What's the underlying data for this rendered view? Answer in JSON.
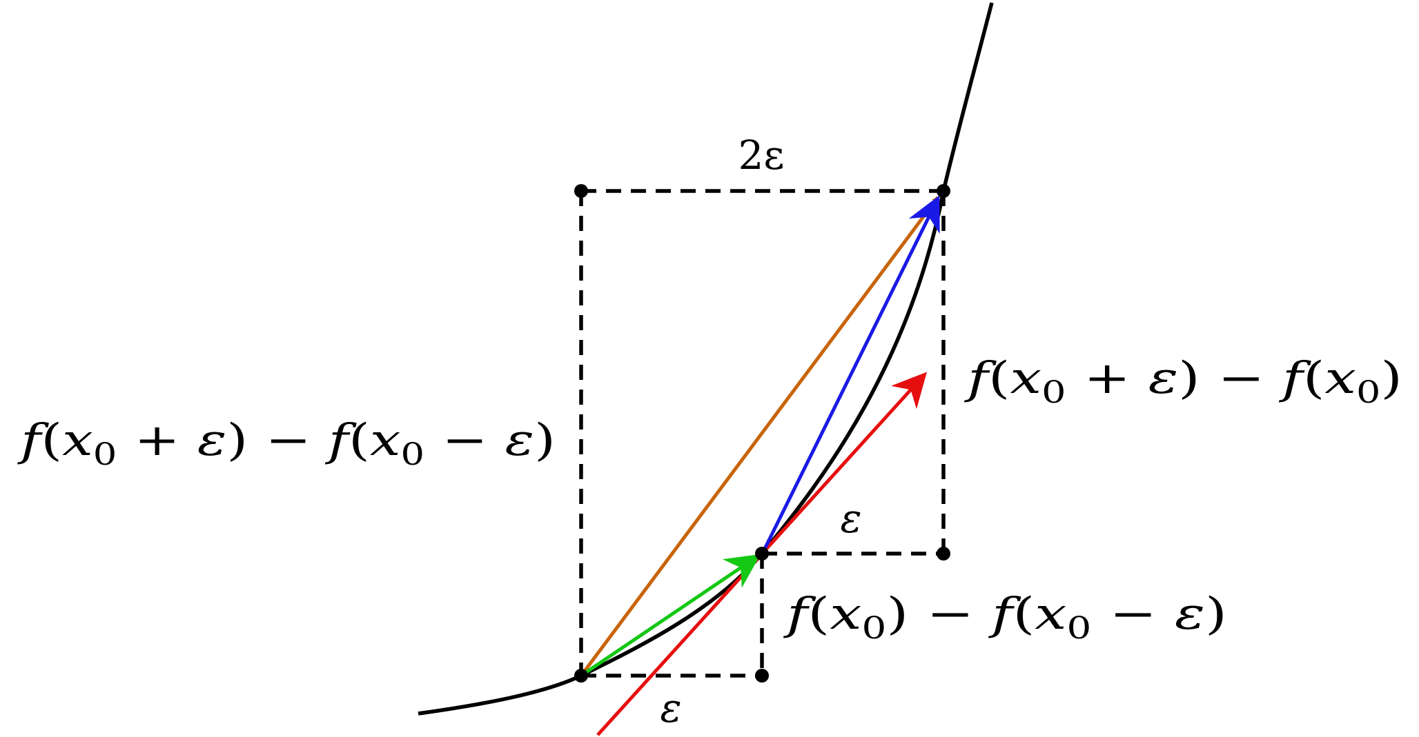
{
  "labels": {
    "two_eps": "2ε",
    "eps_right": "ε",
    "eps_bottom": "ε",
    "central_diff": {
      "f1": "f",
      "lp1": "(",
      "x1": "x",
      "s1": "0",
      "plus": " + ",
      "e1": "ε",
      "rp1": ")",
      "minus": " − ",
      "f2": "f",
      "lp2": "(",
      "x2": "x",
      "s2": "0",
      "minus2": " − ",
      "e2": "ε",
      "rp2": ")"
    },
    "forward_diff": {
      "f1": "f",
      "lp1": "(",
      "x1": "x",
      "s1": "0",
      "plus": " + ",
      "e1": "ε",
      "rp1": ")",
      "minus": " − ",
      "f2": "f",
      "lp2": "(",
      "x2": "x",
      "s2": "0",
      "rp2": ")"
    },
    "backward_diff": {
      "f1": "f",
      "lp1": "(",
      "x1": "x",
      "s1": "0",
      "rp1": ")",
      "minus": " − ",
      "f2": "f",
      "lp2": "(",
      "x2": "x",
      "s2": "0",
      "minus2": " − ",
      "e2": "ε",
      "rp2": ")"
    }
  },
  "colors": {
    "curve": "#000000",
    "guides": "#000000",
    "central_arrow": "#c8640a",
    "forward_arrow": "#1a1ae6",
    "backward_arrow": "#14c814",
    "tangent_arrow": "#e60f0f"
  }
}
